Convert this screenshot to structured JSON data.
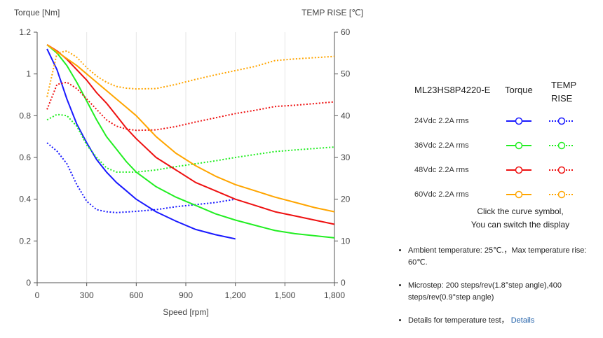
{
  "chart_data": {
    "type": "line",
    "y_left_label": "Torque  [Nm]",
    "y_right_label": "TEMP RISE [℃]",
    "xlabel": "Speed [rpm]",
    "xlim": [
      0,
      1800
    ],
    "ylim_left": [
      0,
      1.2
    ],
    "ylim_right": [
      0,
      60
    ],
    "x_ticks": [
      "0",
      "300",
      "600",
      "900",
      "1,200",
      "1,500",
      "1,800"
    ],
    "y_left_ticks": [
      "0",
      "0.2",
      "0.4",
      "0.6",
      "0.8",
      "1",
      "1.2"
    ],
    "y_right_ticks": [
      "0",
      "10",
      "20",
      "30",
      "40",
      "50",
      "60"
    ],
    "grid": "vertical",
    "series": [
      {
        "name": "24Vdc  2.2A rms",
        "color": "#1a1aff",
        "torque": [
          [
            60,
            1.12
          ],
          [
            120,
            1.02
          ],
          [
            180,
            0.88
          ],
          [
            240,
            0.76
          ],
          [
            300,
            0.67
          ],
          [
            360,
            0.59
          ],
          [
            420,
            0.53
          ],
          [
            480,
            0.48
          ],
          [
            540,
            0.44
          ],
          [
            600,
            0.4
          ],
          [
            720,
            0.34
          ],
          [
            840,
            0.295
          ],
          [
            960,
            0.255
          ],
          [
            1080,
            0.23
          ],
          [
            1200,
            0.21
          ]
        ],
        "temp_rise": [
          [
            60,
            33.5
          ],
          [
            120,
            31.5
          ],
          [
            180,
            28.5
          ],
          [
            240,
            23.5
          ],
          [
            300,
            19.5
          ],
          [
            360,
            17.5
          ],
          [
            420,
            17
          ],
          [
            480,
            16.8
          ],
          [
            600,
            17.1
          ],
          [
            720,
            17.5
          ],
          [
            840,
            18.2
          ],
          [
            960,
            18.7
          ],
          [
            1080,
            19.2
          ],
          [
            1200,
            20
          ]
        ]
      },
      {
        "name": "36Vdc  2.2A rms",
        "color": "#22ee22",
        "torque": [
          [
            60,
            1.14
          ],
          [
            120,
            1.1
          ],
          [
            180,
            1.04
          ],
          [
            240,
            0.96
          ],
          [
            300,
            0.87
          ],
          [
            360,
            0.78
          ],
          [
            420,
            0.7
          ],
          [
            480,
            0.64
          ],
          [
            540,
            0.58
          ],
          [
            600,
            0.53
          ],
          [
            720,
            0.46
          ],
          [
            840,
            0.41
          ],
          [
            960,
            0.37
          ],
          [
            1080,
            0.33
          ],
          [
            1200,
            0.3
          ],
          [
            1320,
            0.275
          ],
          [
            1440,
            0.25
          ],
          [
            1560,
            0.235
          ],
          [
            1800,
            0.215
          ]
        ],
        "temp_rise": [
          [
            60,
            39
          ],
          [
            120,
            40.3
          ],
          [
            180,
            40
          ],
          [
            240,
            37.5
          ],
          [
            300,
            33
          ],
          [
            360,
            30
          ],
          [
            420,
            27.5
          ],
          [
            480,
            26.5
          ],
          [
            540,
            26.5
          ],
          [
            600,
            26.5
          ],
          [
            720,
            27
          ],
          [
            840,
            27.8
          ],
          [
            960,
            28.5
          ],
          [
            1080,
            29.2
          ],
          [
            1200,
            30
          ],
          [
            1320,
            30.7
          ],
          [
            1440,
            31.4
          ],
          [
            1560,
            31.8
          ],
          [
            1800,
            32.5
          ]
        ]
      },
      {
        "name": "48Vdc  2.2A rms",
        "color": "#ee1111",
        "torque": [
          [
            60,
            1.14
          ],
          [
            120,
            1.11
          ],
          [
            180,
            1.07
          ],
          [
            240,
            1.02
          ],
          [
            300,
            0.97
          ],
          [
            360,
            0.91
          ],
          [
            420,
            0.86
          ],
          [
            480,
            0.8
          ],
          [
            540,
            0.74
          ],
          [
            600,
            0.69
          ],
          [
            720,
            0.6
          ],
          [
            840,
            0.54
          ],
          [
            960,
            0.48
          ],
          [
            1080,
            0.44
          ],
          [
            1200,
            0.4
          ],
          [
            1320,
            0.37
          ],
          [
            1440,
            0.34
          ],
          [
            1560,
            0.32
          ],
          [
            1680,
            0.3
          ],
          [
            1800,
            0.28
          ]
        ],
        "temp_rise": [
          [
            60,
            41.5
          ],
          [
            120,
            47.5
          ],
          [
            180,
            48
          ],
          [
            240,
            46.5
          ],
          [
            300,
            44
          ],
          [
            360,
            41.5
          ],
          [
            420,
            39
          ],
          [
            480,
            37.5
          ],
          [
            540,
            36.8
          ],
          [
            600,
            36.5
          ],
          [
            720,
            36.6
          ],
          [
            840,
            37.4
          ],
          [
            960,
            38.5
          ],
          [
            1080,
            39.5
          ],
          [
            1200,
            40.5
          ],
          [
            1320,
            41.3
          ],
          [
            1440,
            42.2
          ],
          [
            1560,
            42.5
          ],
          [
            1800,
            43.3
          ]
        ]
      },
      {
        "name": "60Vdc  2.2A rms",
        "color": "#ffa500",
        "torque": [
          [
            60,
            1.14
          ],
          [
            150,
            1.09
          ],
          [
            240,
            1.04
          ],
          [
            300,
            1.0
          ],
          [
            360,
            0.96
          ],
          [
            420,
            0.92
          ],
          [
            480,
            0.88
          ],
          [
            540,
            0.84
          ],
          [
            600,
            0.8
          ],
          [
            720,
            0.7
          ],
          [
            840,
            0.62
          ],
          [
            960,
            0.56
          ],
          [
            1080,
            0.51
          ],
          [
            1200,
            0.47
          ],
          [
            1320,
            0.44
          ],
          [
            1440,
            0.41
          ],
          [
            1560,
            0.385
          ],
          [
            1680,
            0.36
          ],
          [
            1800,
            0.34
          ]
        ],
        "temp_rise": [
          [
            60,
            44.5
          ],
          [
            120,
            55
          ],
          [
            180,
            55.5
          ],
          [
            240,
            54
          ],
          [
            300,
            51.5
          ],
          [
            360,
            49.5
          ],
          [
            420,
            48
          ],
          [
            480,
            47
          ],
          [
            540,
            46.6
          ],
          [
            600,
            46.4
          ],
          [
            720,
            46.5
          ],
          [
            840,
            47.5
          ],
          [
            960,
            48.7
          ],
          [
            1080,
            49.8
          ],
          [
            1200,
            50.8
          ],
          [
            1320,
            51.8
          ],
          [
            1440,
            53.2
          ],
          [
            1560,
            53.6
          ],
          [
            1800,
            54.2
          ]
        ]
      }
    ]
  },
  "legend": {
    "model": "ML23HS8P4220-E",
    "torque_header": "Torque",
    "temp_header_line1": "TEMP",
    "temp_header_line2": "RISE",
    "rows": [
      {
        "label": "24Vdc  2.2A rms",
        "color": "#1a1aff"
      },
      {
        "label": "36Vdc  2.2A rms",
        "color": "#22ee22"
      },
      {
        "label": "48Vdc  2.2A rms",
        "color": "#ee1111"
      },
      {
        "label": "60Vdc  2.2A rms",
        "color": "#ffa500"
      }
    ],
    "hint_line1": "Click the curve symbol,",
    "hint_line2": "You can switch the display"
  },
  "notes": {
    "ambient": "Ambient temperature: 25℃.，Max temperature rise: 60℃.",
    "microstep": "Microstep: 200 steps/rev(1.8°step angle),400 steps/rev(0.9°step angle)",
    "details_text": "Details for temperature test，",
    "details_link": "Details"
  }
}
